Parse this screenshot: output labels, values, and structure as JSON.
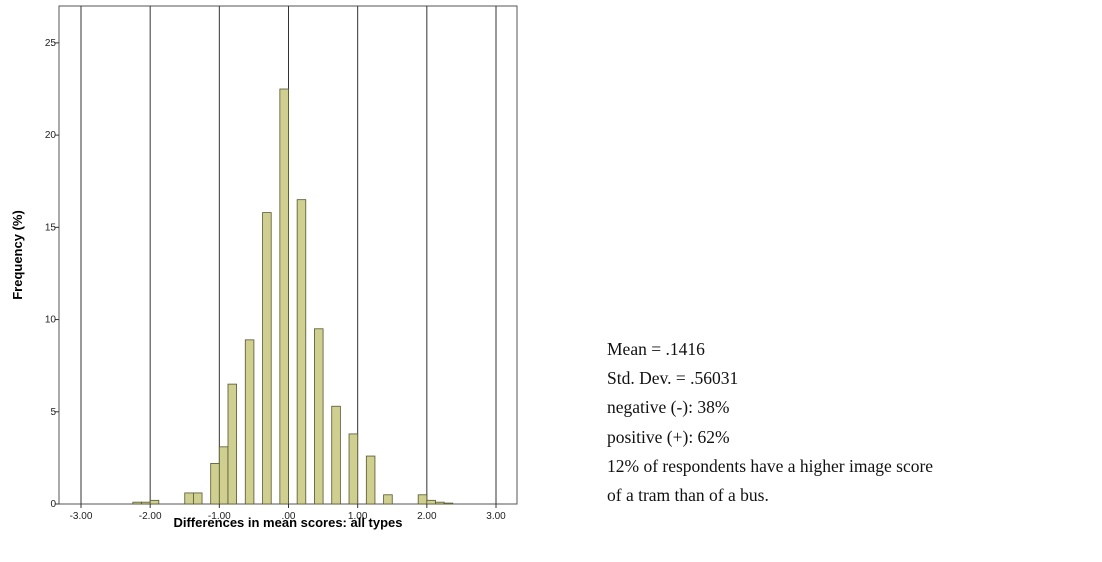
{
  "chart_data": {
    "type": "bar",
    "xlabel": "Differences in mean scores: all types",
    "ylabel": "Frequency (%)",
    "xlim": [
      -3.0,
      3.0
    ],
    "ylim": [
      0,
      27
    ],
    "x_ticks": [
      -3.0,
      -2.0,
      -1.0,
      0.0,
      1.0,
      2.0,
      3.0
    ],
    "x_tick_labels": [
      "-3.00",
      "-2.00",
      "-1.00",
      ".00",
      "1.00",
      "2.00",
      "3.00"
    ],
    "y_ticks": [
      0,
      5,
      10,
      15,
      20,
      25
    ],
    "y_tick_labels": [
      "0",
      "5",
      "10",
      "15",
      "20",
      "25"
    ],
    "vertical_gridlines": true,
    "bar_color": "#cfcf8f",
    "bin_width": 0.125,
    "bins": [
      {
        "x0": -2.25,
        "value": 0.1
      },
      {
        "x0": -2.125,
        "value": 0.1
      },
      {
        "x0": -2.0,
        "value": 0.2
      },
      {
        "x0": -1.875,
        "value": 0.0
      },
      {
        "x0": -1.75,
        "value": 0.0
      },
      {
        "x0": -1.625,
        "value": 0.0
      },
      {
        "x0": -1.5,
        "value": 0.6
      },
      {
        "x0": -1.375,
        "value": 0.6
      },
      {
        "x0": -1.125,
        "value": 2.2
      },
      {
        "x0": -1.0,
        "value": 3.1
      },
      {
        "x0": -0.875,
        "value": 6.5
      },
      {
        "x0": -0.625,
        "value": 8.9
      },
      {
        "x0": -0.375,
        "value": 15.8
      },
      {
        "x0": -0.125,
        "value": 22.5
      },
      {
        "x0": 0.125,
        "value": 16.5
      },
      {
        "x0": 0.375,
        "value": 9.5
      },
      {
        "x0": 0.625,
        "value": 5.3
      },
      {
        "x0": 0.875,
        "value": 3.8
      },
      {
        "x0": 1.125,
        "value": 2.6
      },
      {
        "x0": 1.375,
        "value": 0.5
      },
      {
        "x0": 1.625,
        "value": 0.0
      },
      {
        "x0": 1.875,
        "value": 0.5
      },
      {
        "x0": 2.0,
        "value": 0.2
      },
      {
        "x0": 2.125,
        "value": 0.1
      },
      {
        "x0": 2.25,
        "value": 0.05
      }
    ]
  },
  "stats": {
    "mean": "Mean = .1416",
    "std_dev": "Std. Dev. = .56031",
    "negative": "negative (-): 38%",
    "positive": "positive (+): 62%",
    "note_line1": "12% of respondents have a higher image score",
    "note_line2": "of a tram than of a bus."
  }
}
